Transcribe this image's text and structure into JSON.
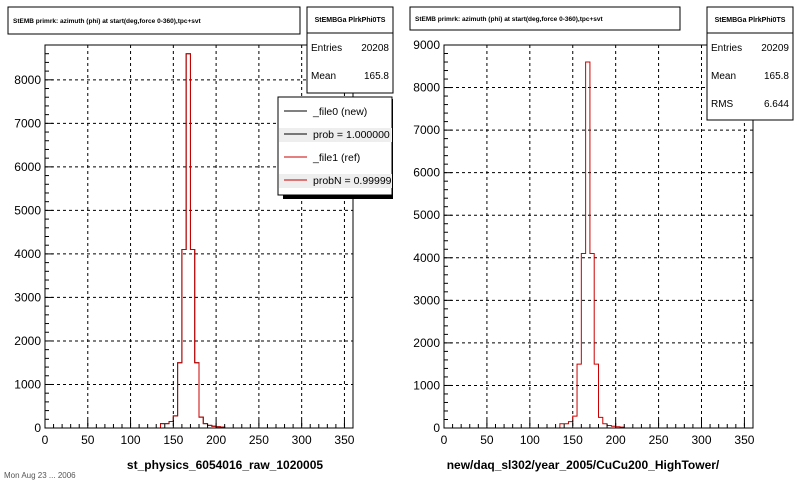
{
  "colors": {
    "ref": "#cc0000",
    "new": "#000000",
    "frame": "#000000",
    "grid": "#000000",
    "background": "#ffffff"
  },
  "footer": "Mon Aug 23 ... 2006",
  "chart_data": [
    {
      "type": "bar",
      "title": "StEMB primrk: azimuth (phi) at start(deg,force 0-360),tpc+svt",
      "xlabel": "st_physics_6054016_raw_1020005",
      "xlim": [
        0,
        360
      ],
      "ylim": [
        0,
        8800
      ],
      "xticks": [
        0,
        50,
        100,
        150,
        200,
        250,
        300,
        350
      ],
      "yticks": [
        0,
        1000,
        2000,
        3000,
        4000,
        5000,
        6000,
        7000,
        8000
      ],
      "grid": true,
      "bin_width": 5,
      "bins_x": [
        135,
        140,
        145,
        150,
        155,
        160,
        165,
        170,
        175,
        180,
        185,
        190,
        195,
        200,
        205
      ],
      "series": [
        {
          "name": "_file0 (new)",
          "values": [
            100,
            100,
            150,
            280,
            1500,
            4100,
            8600,
            4100,
            1500,
            250,
            100,
            60,
            40,
            30,
            20
          ]
        },
        {
          "name": "_file1 (ref)",
          "values": [
            100,
            100,
            150,
            280,
            1500,
            4100,
            8600,
            4100,
            1500,
            250,
            100,
            60,
            40,
            30,
            20
          ]
        }
      ],
      "stats": {
        "name": "StEMBGa PlrkPhi0TS",
        "entries_label": "Entries",
        "entries": "20208",
        "mean_label": "Mean",
        "mean": "165.8"
      },
      "legend": {
        "position": "top-right",
        "entries": [
          "_file0 (new)",
          "prob = 1.000000",
          "_file1 (ref)",
          "probN = 0.99999"
        ]
      }
    },
    {
      "type": "bar",
      "title": "StEMB primrk: azimuth (phi) at start(deg,force 0-360),tpc+svt",
      "xlabel": "new/daq_sl302/year_2005/CuCu200_HighTower/",
      "xlim": [
        0,
        360
      ],
      "ylim": [
        0,
        9000
      ],
      "xticks": [
        0,
        50,
        100,
        150,
        200,
        250,
        300,
        350
      ],
      "yticks": [
        0,
        1000,
        2000,
        3000,
        4000,
        5000,
        6000,
        7000,
        8000,
        9000
      ],
      "grid": true,
      "bin_width": 5,
      "bins_x": [
        135,
        140,
        145,
        150,
        155,
        160,
        165,
        170,
        175,
        180,
        185,
        190,
        195,
        200,
        205
      ],
      "series": [
        {
          "values": [
            100,
            100,
            150,
            280,
            1500,
            4100,
            8600,
            4100,
            1500,
            250,
            100,
            60,
            40,
            30,
            20
          ]
        }
      ],
      "stats": {
        "name": "StEMBGa PlrkPhi0TS",
        "entries_label": "Entries",
        "entries": "20209",
        "mean_label": "Mean",
        "mean": "165.8",
        "rms_label": "RMS",
        "rms": "6.644"
      }
    }
  ]
}
